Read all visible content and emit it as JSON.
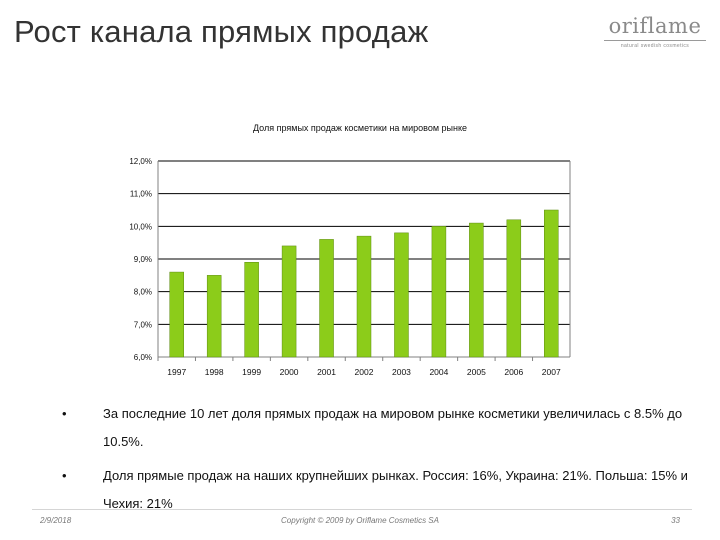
{
  "slide": {
    "title": "Рост канала прямых продаж"
  },
  "logo": {
    "word": "oriflame",
    "tagline": "natural swedish cosmetics"
  },
  "bullets": [
    {
      "marker": "•",
      "text": "За последние 10 лет доля прямых продаж на мировом рынке косметики увеличилась с 8.5% до 10.5%."
    },
    {
      "marker": "•",
      "text": "Доля прямые продаж на наших крупнейших рынках. Россия: 16%, Украина: 21%. Польша: 15% и Чехия: 21%"
    }
  ],
  "footer": {
    "date": "2/9/2018",
    "copyright": "Copyright © 2009 by Oriflame Cosmetics SA",
    "page_number": "33"
  },
  "colors": {
    "bar_fill": "#8ccc1a",
    "bar_stroke": "#5c8a10",
    "grid": "#000000",
    "axis": "#808080"
  },
  "chart_data": {
    "type": "bar",
    "title": "Доля прямых продаж косметики на мировом рынке",
    "categories": [
      "1997",
      "1998",
      "1999",
      "2000",
      "2001",
      "2002",
      "2003",
      "2004",
      "2005",
      "2006",
      "2007"
    ],
    "values": [
      8.6,
      8.5,
      8.9,
      9.4,
      9.6,
      9.7,
      9.8,
      10.0,
      10.1,
      10.2,
      10.5
    ],
    "y_ticks": [
      "12,0%",
      "11,0%",
      "10,0%",
      "9,0%",
      "8,0%",
      "7,0%",
      "6,0%"
    ],
    "ylim": [
      6,
      12
    ],
    "grid": true,
    "legend": "none"
  }
}
